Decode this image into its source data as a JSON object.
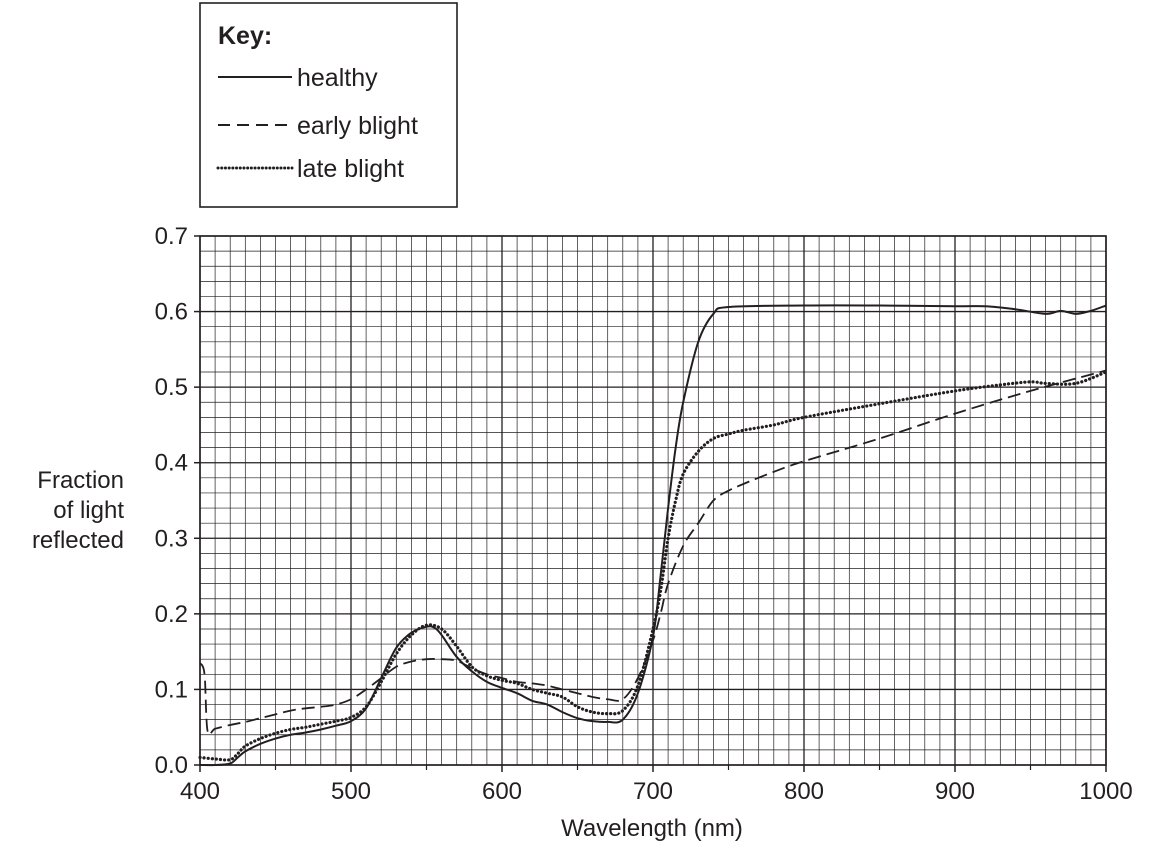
{
  "chart_data": {
    "type": "line",
    "xlabel": "Wavelength (nm)",
    "ylabel_lines": [
      "Fraction",
      "of light",
      "reflected"
    ],
    "xlim": [
      400,
      1000
    ],
    "ylim": [
      0,
      0.7
    ],
    "x_ticks": [
      "400",
      "500",
      "600",
      "700",
      "800",
      "900",
      "1000"
    ],
    "y_ticks": [
      "0.0",
      "0.1",
      "0.2",
      "0.3",
      "0.4",
      "0.5",
      "0.6",
      "0.7"
    ],
    "grid": true,
    "legend": {
      "title": "Key:",
      "placement": "top-left"
    },
    "series": [
      {
        "name": "healthy",
        "style": "solid",
        "points": [
          [
            400,
            0.0
          ],
          [
            410,
            0.0
          ],
          [
            420,
            0.002
          ],
          [
            425,
            0.01
          ],
          [
            430,
            0.018
          ],
          [
            440,
            0.028
          ],
          [
            450,
            0.035
          ],
          [
            460,
            0.04
          ],
          [
            470,
            0.043
          ],
          [
            480,
            0.047
          ],
          [
            490,
            0.052
          ],
          [
            500,
            0.058
          ],
          [
            510,
            0.075
          ],
          [
            520,
            0.115
          ],
          [
            530,
            0.155
          ],
          [
            540,
            0.175
          ],
          [
            550,
            0.183
          ],
          [
            555,
            0.182
          ],
          [
            560,
            0.172
          ],
          [
            570,
            0.143
          ],
          [
            580,
            0.124
          ],
          [
            590,
            0.11
          ],
          [
            600,
            0.102
          ],
          [
            610,
            0.095
          ],
          [
            620,
            0.085
          ],
          [
            630,
            0.08
          ],
          [
            640,
            0.07
          ],
          [
            650,
            0.062
          ],
          [
            660,
            0.058
          ],
          [
            670,
            0.057
          ],
          [
            680,
            0.06
          ],
          [
            690,
            0.095
          ],
          [
            700,
            0.17
          ],
          [
            705,
            0.25
          ],
          [
            710,
            0.34
          ],
          [
            715,
            0.42
          ],
          [
            720,
            0.48
          ],
          [
            730,
            0.56
          ],
          [
            740,
            0.597
          ],
          [
            750,
            0.606
          ],
          [
            800,
            0.608
          ],
          [
            850,
            0.608
          ],
          [
            900,
            0.607
          ],
          [
            920,
            0.607
          ],
          [
            940,
            0.603
          ],
          [
            960,
            0.597
          ],
          [
            970,
            0.601
          ],
          [
            980,
            0.597
          ],
          [
            990,
            0.601
          ],
          [
            1000,
            0.608
          ]
        ]
      },
      {
        "name": "early blight",
        "style": "dashed",
        "points": [
          [
            400,
            0.135
          ],
          [
            403,
            0.12
          ],
          [
            405,
            0.045
          ],
          [
            410,
            0.048
          ],
          [
            420,
            0.053
          ],
          [
            430,
            0.057
          ],
          [
            440,
            0.062
          ],
          [
            450,
            0.067
          ],
          [
            460,
            0.072
          ],
          [
            470,
            0.075
          ],
          [
            480,
            0.077
          ],
          [
            490,
            0.08
          ],
          [
            500,
            0.087
          ],
          [
            510,
            0.1
          ],
          [
            520,
            0.115
          ],
          [
            530,
            0.13
          ],
          [
            540,
            0.137
          ],
          [
            550,
            0.14
          ],
          [
            560,
            0.14
          ],
          [
            570,
            0.138
          ],
          [
            580,
            0.128
          ],
          [
            590,
            0.12
          ],
          [
            600,
            0.115
          ],
          [
            610,
            0.11
          ],
          [
            620,
            0.108
          ],
          [
            630,
            0.105
          ],
          [
            640,
            0.1
          ],
          [
            650,
            0.095
          ],
          [
            660,
            0.09
          ],
          [
            670,
            0.087
          ],
          [
            680,
            0.087
          ],
          [
            690,
            0.115
          ],
          [
            700,
            0.165
          ],
          [
            705,
            0.2
          ],
          [
            710,
            0.24
          ],
          [
            720,
            0.29
          ],
          [
            730,
            0.32
          ],
          [
            740,
            0.35
          ],
          [
            750,
            0.363
          ],
          [
            760,
            0.372
          ],
          [
            780,
            0.388
          ],
          [
            800,
            0.402
          ],
          [
            850,
            0.432
          ],
          [
            900,
            0.465
          ],
          [
            950,
            0.495
          ],
          [
            1000,
            0.522
          ]
        ]
      },
      {
        "name": "late blight",
        "style": "dotted",
        "points": [
          [
            400,
            0.01
          ],
          [
            410,
            0.008
          ],
          [
            420,
            0.007
          ],
          [
            425,
            0.015
          ],
          [
            430,
            0.025
          ],
          [
            440,
            0.035
          ],
          [
            450,
            0.042
          ],
          [
            460,
            0.047
          ],
          [
            470,
            0.05
          ],
          [
            480,
            0.054
          ],
          [
            490,
            0.058
          ],
          [
            500,
            0.063
          ],
          [
            510,
            0.077
          ],
          [
            520,
            0.11
          ],
          [
            530,
            0.147
          ],
          [
            540,
            0.172
          ],
          [
            550,
            0.185
          ],
          [
            560,
            0.18
          ],
          [
            570,
            0.157
          ],
          [
            580,
            0.13
          ],
          [
            590,
            0.118
          ],
          [
            600,
            0.112
          ],
          [
            610,
            0.108
          ],
          [
            620,
            0.1
          ],
          [
            630,
            0.095
          ],
          [
            640,
            0.09
          ],
          [
            650,
            0.077
          ],
          [
            660,
            0.07
          ],
          [
            670,
            0.068
          ],
          [
            680,
            0.072
          ],
          [
            690,
            0.105
          ],
          [
            700,
            0.18
          ],
          [
            705,
            0.23
          ],
          [
            710,
            0.3
          ],
          [
            715,
            0.35
          ],
          [
            720,
            0.385
          ],
          [
            730,
            0.415
          ],
          [
            740,
            0.432
          ],
          [
            750,
            0.438
          ],
          [
            760,
            0.443
          ],
          [
            780,
            0.45
          ],
          [
            800,
            0.46
          ],
          [
            850,
            0.478
          ],
          [
            900,
            0.495
          ],
          [
            930,
            0.503
          ],
          [
            950,
            0.507
          ],
          [
            960,
            0.505
          ],
          [
            980,
            0.505
          ],
          [
            1000,
            0.52
          ]
        ]
      }
    ]
  }
}
